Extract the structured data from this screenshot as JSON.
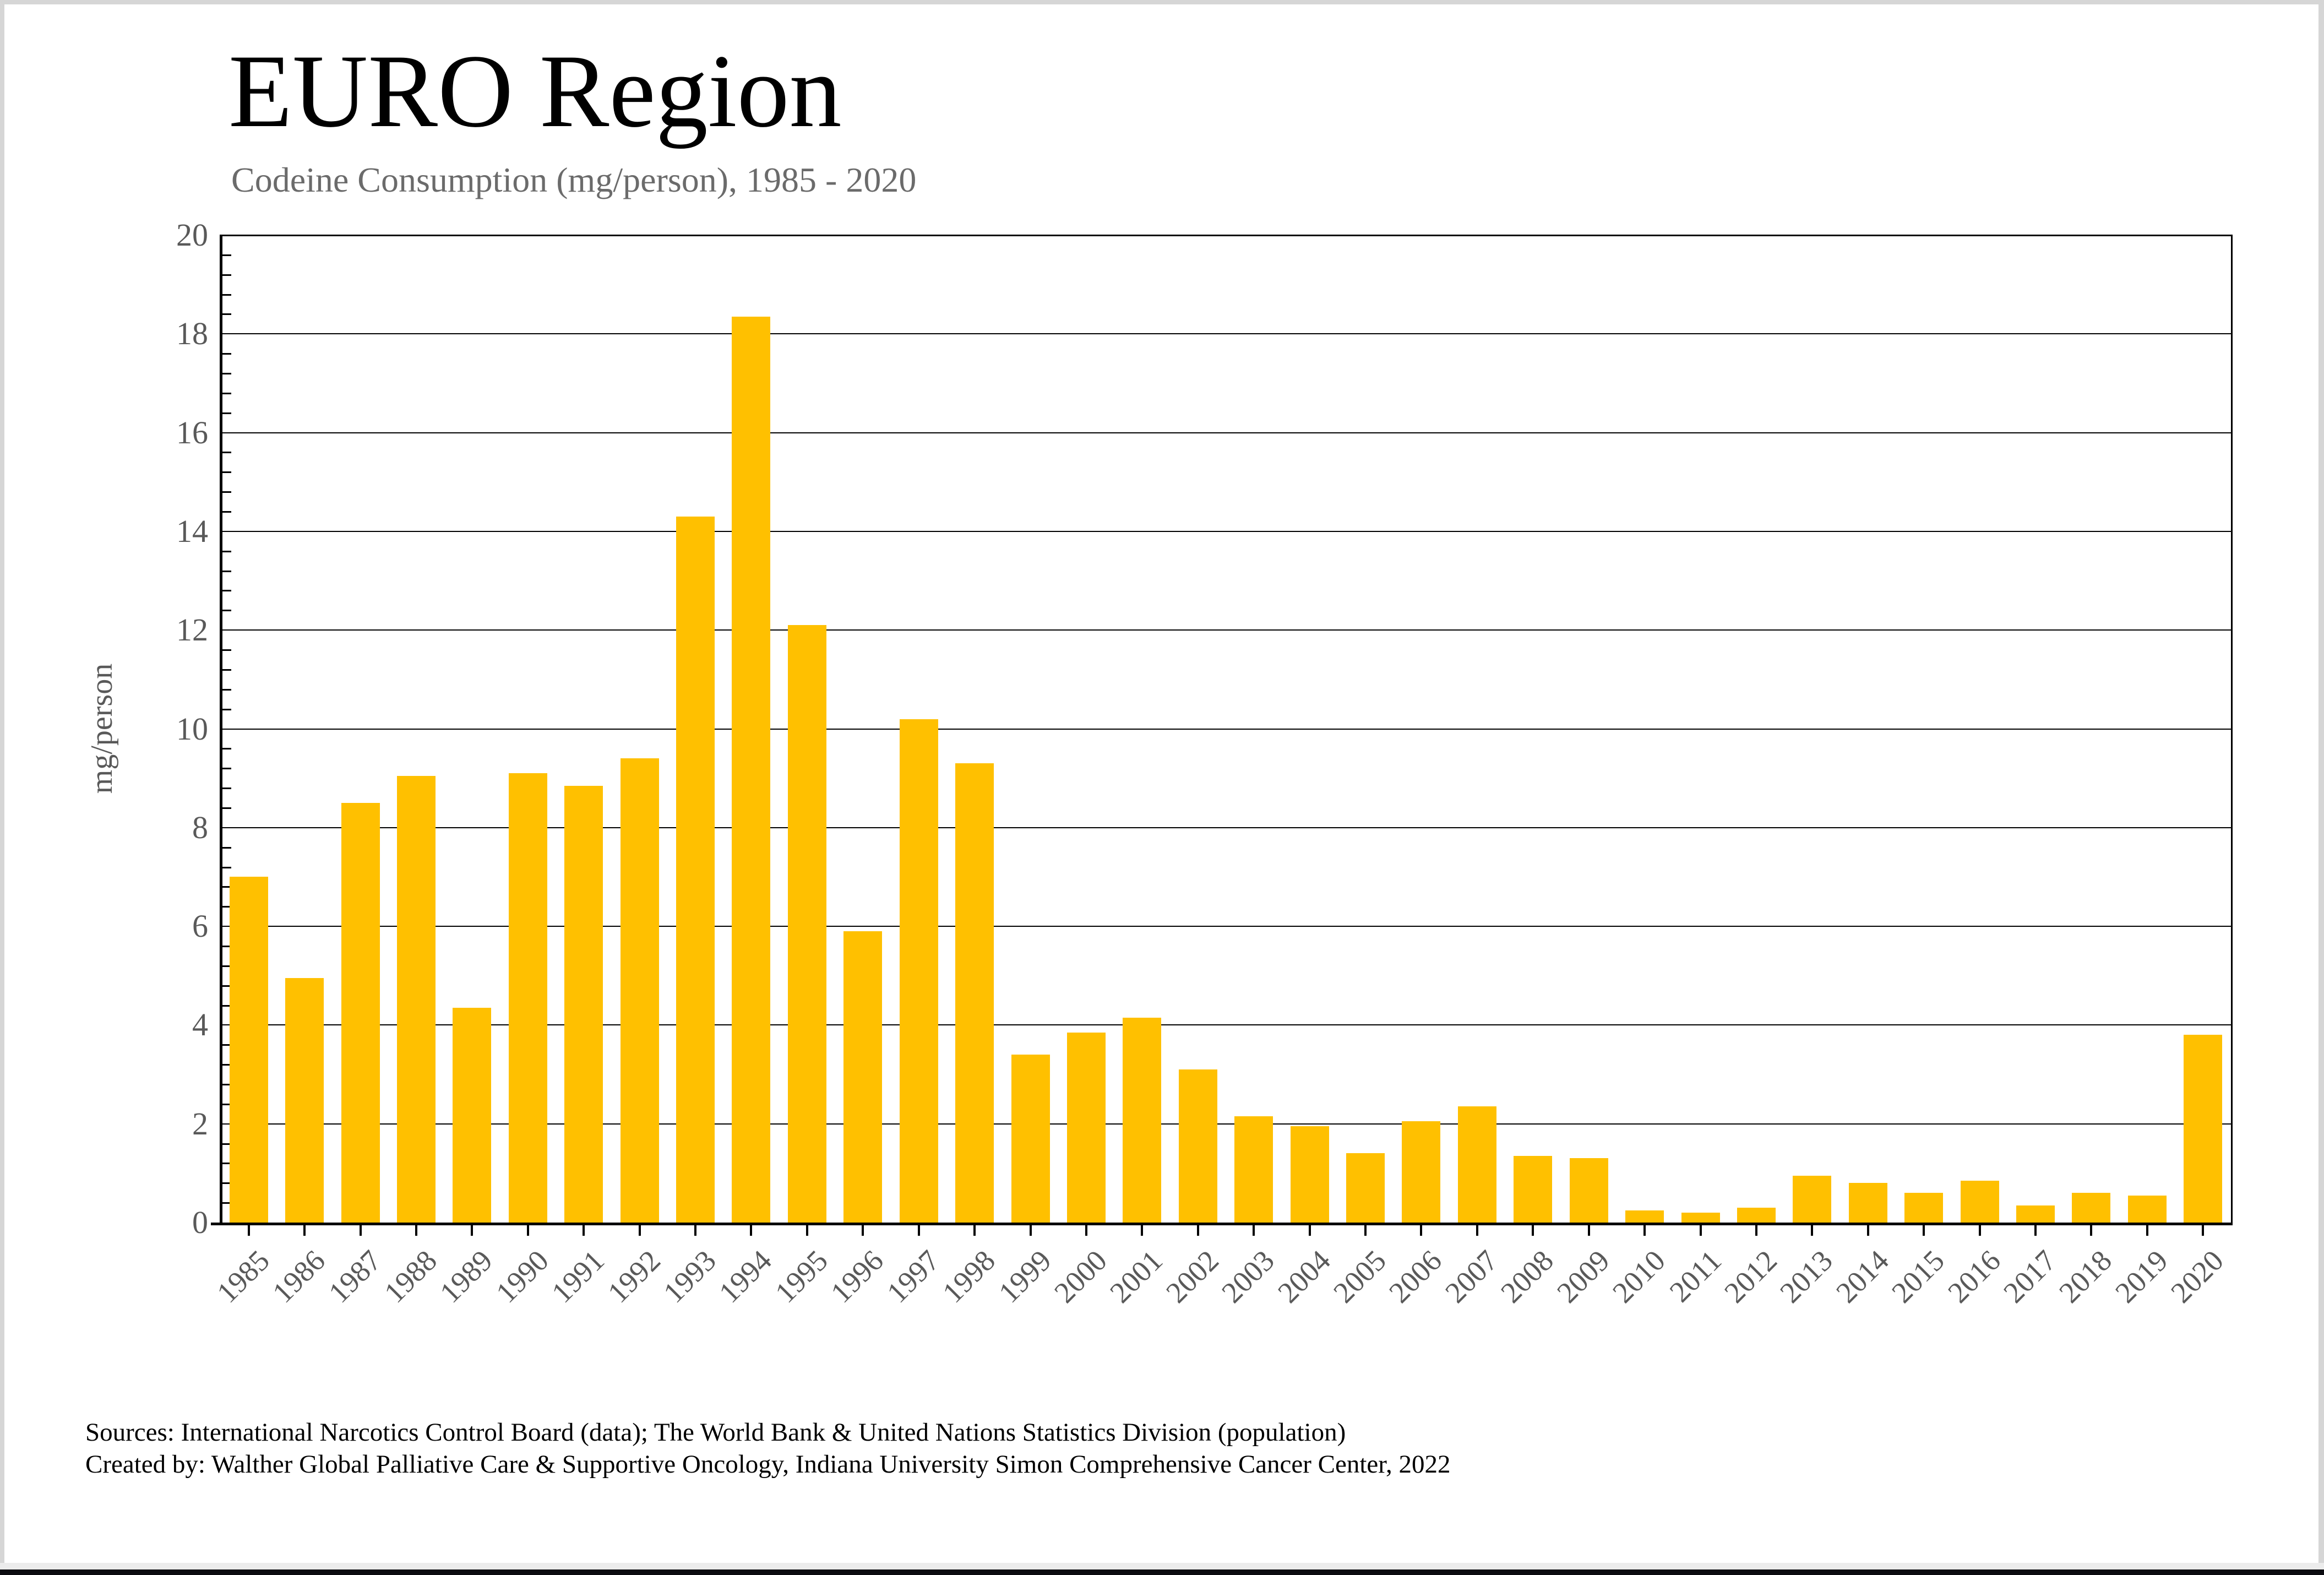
{
  "window": {
    "frame_color": "#d6d6d6",
    "bottom_strip_color": "#ececec",
    "bottom_bar_color": "#0b0b10"
  },
  "header": {
    "title": "EURO Region",
    "subtitle": "Codeine Consumption (mg/person), 1985 - 2020"
  },
  "chart_data": {
    "type": "bar",
    "title": "EURO Region",
    "subtitle": "Codeine Consumption (mg/person), 1985 - 2020",
    "xlabel": "",
    "ylabel": "mg/person",
    "ylim": [
      0,
      20
    ],
    "y_major_step": 2,
    "y_minor_step": 0.4,
    "y_ticks": [
      0,
      2,
      4,
      6,
      8,
      10,
      12,
      14,
      16,
      18,
      20
    ],
    "grid": "horizontal-major",
    "legend": "none",
    "x_tick_rotation": -45,
    "bar_color": "#FFC000",
    "axis_color": "#000000",
    "tick_label_color": "#595959",
    "categories": [
      "1985",
      "1986",
      "1987",
      "1988",
      "1989",
      "1990",
      "1991",
      "1992",
      "1993",
      "1994",
      "1995",
      "1996",
      "1997",
      "1998",
      "1999",
      "2000",
      "2001",
      "2002",
      "2003",
      "2004",
      "2005",
      "2006",
      "2007",
      "2008",
      "2009",
      "2010",
      "2011",
      "2012",
      "2013",
      "2014",
      "2015",
      "2016",
      "2017",
      "2018",
      "2019",
      "2020"
    ],
    "values": [
      7.0,
      4.95,
      8.5,
      9.05,
      4.35,
      9.1,
      8.85,
      9.4,
      14.3,
      18.35,
      12.1,
      5.9,
      10.2,
      9.3,
      3.4,
      3.85,
      4.15,
      3.1,
      2.15,
      1.95,
      1.4,
      2.05,
      2.35,
      1.35,
      1.3,
      0.25,
      0.2,
      0.3,
      0.95,
      0.8,
      0.6,
      0.85,
      0.35,
      0.6,
      0.55,
      3.8
    ]
  },
  "footer": {
    "line1": "Sources: International Narcotics Control Board (data); The World Bank & United Nations Statistics Division (population)",
    "line2": "Created by: Walther Global Palliative Care & Supportive Oncology, Indiana University Simon Comprehensive Cancer Center, 2022"
  }
}
